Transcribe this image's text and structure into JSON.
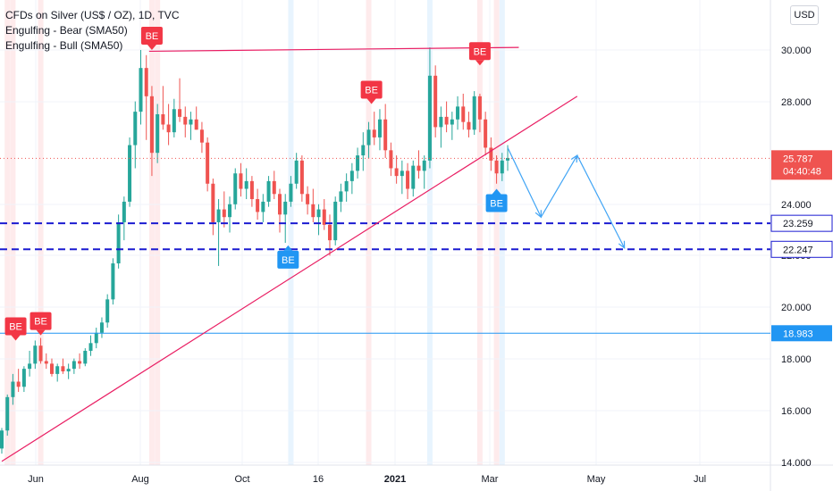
{
  "legend": {
    "title": "CFDs on Silver (US$ / OZ), 1D, TVC",
    "indicator_1": "Engulfing - Bear (SMA50)",
    "indicator_2": "Engulfing - Bull (SMA50)"
  },
  "currency": "USD",
  "chart_data": {
    "type": "candlestick",
    "title": "CFDs on Silver (US$ / OZ), 1D, TVC",
    "y_ticks": [
      "30.000",
      "28.000",
      "24.000",
      "22.000",
      "20.000",
      "18.000",
      "16.000",
      "14.000"
    ],
    "x_ticks": [
      "Jun",
      "Aug",
      "Oct",
      "16",
      "2021",
      "Mar",
      "May",
      "Jul"
    ],
    "ylim": [
      13.9,
      31.3
    ],
    "grid": true,
    "last_price": {
      "value": "25.787",
      "countdown": "04:40:48"
    },
    "horizontal_levels": [
      {
        "value": 23.259,
        "label": "23.259",
        "style": "dashed",
        "color": "#1b1bd1"
      },
      {
        "value": 22.247,
        "label": "22.247",
        "style": "dashed",
        "color": "#1b1bd1"
      },
      {
        "value": 18.983,
        "label": "18.983",
        "style": "solid",
        "color": "#2196f3"
      }
    ],
    "trendlines": [
      {
        "from": [
          0.0,
          14.0
        ],
        "to": [
          103.5,
          28.2
        ],
        "color": "#e91e63"
      },
      {
        "from": [
          26.5,
          29.95
        ],
        "to": [
          93.0,
          30.1
        ],
        "color": "#e91e63"
      }
    ],
    "projection_path": {
      "color": "#42a5f5",
      "points": [
        [
          91.0,
          26.2
        ],
        [
          97.0,
          23.5
        ],
        [
          103.5,
          25.9
        ],
        [
          112.0,
          22.3
        ]
      ]
    },
    "signal_labels": [
      {
        "text": "BE",
        "type": "bear",
        "x": 2.5,
        "y": 18.7
      },
      {
        "text": "BE",
        "type": "bear",
        "x": 7.0,
        "y": 18.9
      },
      {
        "text": "BE",
        "type": "bear",
        "x": 27.0,
        "y": 30.0
      },
      {
        "text": "BE",
        "type": "bear",
        "x": 66.5,
        "y": 27.9
      },
      {
        "text": "BE",
        "type": "bear",
        "x": 86.0,
        "y": 29.4
      },
      {
        "text": "BE",
        "type": "bull",
        "x": 51.5,
        "y": 22.4
      },
      {
        "text": "BE",
        "type": "bull",
        "x": 89.0,
        "y": 24.6
      }
    ],
    "highlight_bars": [
      {
        "x": 1,
        "type": "bear"
      },
      {
        "x": 2,
        "type": "bear"
      },
      {
        "x": 7,
        "type": "bear"
      },
      {
        "x": 27,
        "type": "bear"
      },
      {
        "x": 28,
        "type": "bear"
      },
      {
        "x": 66,
        "type": "bear"
      },
      {
        "x": 86,
        "type": "bear"
      },
      {
        "x": 89,
        "type": "bear"
      },
      {
        "x": 52,
        "type": "bull"
      },
      {
        "x": 77,
        "type": "bull"
      },
      {
        "x": 90,
        "type": "bull"
      }
    ],
    "candles": [
      [
        14.5,
        15.3,
        14.3,
        15.2
      ],
      [
        15.2,
        16.6,
        15.0,
        16.5
      ],
      [
        16.5,
        17.4,
        16.2,
        17.1
      ],
      [
        17.1,
        17.6,
        16.7,
        16.9
      ],
      [
        16.9,
        17.7,
        16.7,
        17.6
      ],
      [
        17.6,
        18.3,
        17.3,
        17.8
      ],
      [
        17.8,
        18.7,
        17.6,
        18.5
      ],
      [
        18.5,
        18.8,
        17.8,
        17.9
      ],
      [
        17.9,
        18.2,
        17.6,
        17.8
      ],
      [
        17.8,
        18.0,
        17.3,
        17.4
      ],
      [
        17.4,
        17.8,
        17.1,
        17.7
      ],
      [
        17.7,
        18.0,
        17.4,
        17.5
      ],
      [
        17.5,
        17.8,
        17.2,
        17.6
      ],
      [
        17.6,
        18.0,
        17.4,
        17.9
      ],
      [
        17.9,
        18.2,
        17.6,
        17.8
      ],
      [
        17.8,
        18.4,
        17.7,
        18.3
      ],
      [
        18.3,
        18.9,
        18.1,
        18.6
      ],
      [
        18.6,
        19.2,
        18.4,
        19.0
      ],
      [
        19.0,
        19.6,
        18.8,
        19.4
      ],
      [
        19.4,
        20.5,
        19.2,
        20.3
      ],
      [
        20.3,
        21.9,
        20.1,
        21.7
      ],
      [
        21.7,
        23.6,
        21.5,
        23.3
      ],
      [
        23.3,
        24.3,
        22.6,
        24.1
      ],
      [
        24.1,
        26.6,
        23.9,
        26.3
      ],
      [
        26.3,
        28.0,
        25.4,
        27.6
      ],
      [
        27.6,
        30.0,
        27.1,
        29.3
      ],
      [
        29.3,
        29.8,
        26.5,
        28.2
      ],
      [
        28.2,
        28.6,
        25.1,
        26.0
      ],
      [
        26.0,
        27.9,
        25.6,
        27.5
      ],
      [
        27.5,
        28.6,
        26.9,
        27.1
      ],
      [
        27.1,
        27.9,
        26.3,
        26.8
      ],
      [
        26.8,
        28.1,
        26.6,
        27.7
      ],
      [
        27.7,
        28.9,
        27.2,
        27.4
      ],
      [
        27.4,
        27.8,
        26.6,
        27.1
      ],
      [
        27.1,
        27.6,
        26.5,
        27.3
      ],
      [
        27.3,
        27.8,
        26.9,
        26.9
      ],
      [
        26.9,
        27.2,
        26.0,
        26.4
      ],
      [
        26.4,
        26.6,
        24.5,
        24.8
      ],
      [
        24.8,
        25.0,
        22.8,
        23.3
      ],
      [
        23.3,
        24.2,
        21.6,
        23.8
      ],
      [
        23.8,
        24.5,
        23.1,
        23.5
      ],
      [
        23.5,
        24.3,
        22.9,
        24.0
      ],
      [
        24.0,
        25.4,
        23.8,
        25.2
      ],
      [
        25.2,
        25.6,
        24.3,
        24.6
      ],
      [
        24.6,
        25.4,
        24.2,
        24.9
      ],
      [
        24.9,
        25.1,
        23.9,
        24.2
      ],
      [
        24.2,
        24.6,
        23.4,
        23.7
      ],
      [
        23.7,
        24.4,
        23.3,
        24.1
      ],
      [
        24.1,
        25.1,
        23.9,
        24.9
      ],
      [
        24.9,
        25.3,
        24.2,
        24.4
      ],
      [
        24.4,
        24.6,
        22.9,
        23.6
      ],
      [
        23.6,
        24.4,
        22.5,
        24.1
      ],
      [
        24.1,
        25.1,
        23.9,
        24.8
      ],
      [
        24.8,
        26.0,
        24.6,
        25.7
      ],
      [
        25.7,
        25.9,
        24.1,
        24.4
      ],
      [
        24.4,
        24.7,
        23.6,
        24.0
      ],
      [
        24.0,
        24.6,
        23.3,
        23.5
      ],
      [
        23.5,
        24.0,
        22.8,
        23.8
      ],
      [
        23.8,
        24.2,
        23.0,
        23.2
      ],
      [
        23.2,
        23.6,
        22.0,
        22.6
      ],
      [
        22.6,
        24.3,
        22.4,
        24.1
      ],
      [
        24.1,
        24.8,
        23.7,
        24.5
      ],
      [
        24.5,
        25.2,
        24.1,
        24.9
      ],
      [
        24.9,
        25.6,
        24.4,
        25.3
      ],
      [
        25.3,
        26.2,
        25.0,
        25.9
      ],
      [
        25.9,
        26.8,
        25.3,
        26.3
      ],
      [
        26.3,
        27.2,
        25.8,
        26.9
      ],
      [
        26.9,
        27.6,
        26.3,
        26.6
      ],
      [
        26.6,
        27.7,
        26.1,
        27.3
      ],
      [
        27.3,
        27.9,
        25.8,
        26.1
      ],
      [
        26.1,
        26.4,
        25.1,
        25.4
      ],
      [
        25.4,
        25.9,
        24.8,
        25.1
      ],
      [
        25.1,
        25.7,
        24.4,
        25.3
      ],
      [
        25.3,
        25.6,
        24.2,
        24.6
      ],
      [
        24.6,
        25.7,
        24.3,
        25.5
      ],
      [
        25.5,
        26.1,
        25.0,
        25.3
      ],
      [
        25.3,
        25.9,
        24.6,
        25.7
      ],
      [
        25.7,
        30.1,
        25.4,
        29.0
      ],
      [
        29.0,
        29.4,
        26.6,
        27.0
      ],
      [
        27.0,
        27.8,
        26.2,
        27.4
      ],
      [
        27.4,
        28.0,
        26.8,
        27.1
      ],
      [
        27.1,
        27.6,
        26.5,
        27.3
      ],
      [
        27.3,
        28.2,
        26.9,
        27.8
      ],
      [
        27.8,
        28.3,
        26.9,
        27.2
      ],
      [
        27.2,
        27.6,
        26.6,
        26.9
      ],
      [
        26.9,
        28.4,
        26.7,
        28.2
      ],
      [
        28.2,
        28.3,
        26.8,
        27.3
      ],
      [
        27.3,
        27.6,
        25.9,
        26.2
      ],
      [
        26.2,
        26.6,
        25.3,
        25.7
      ],
      [
        25.7,
        25.9,
        24.8,
        25.2
      ],
      [
        25.2,
        26.0,
        24.9,
        25.7
      ],
      [
        25.7,
        26.3,
        25.3,
        25.8
      ]
    ]
  }
}
